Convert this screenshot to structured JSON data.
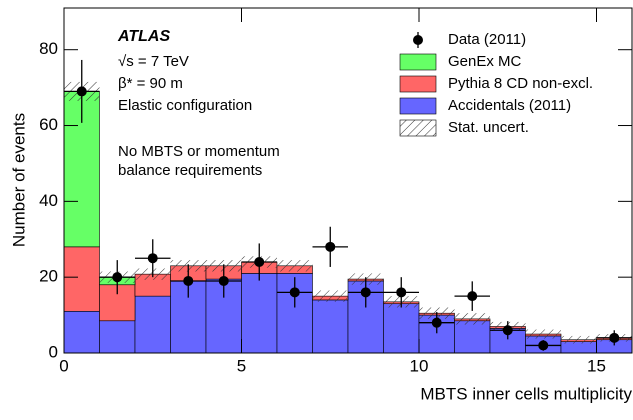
{
  "chart_data": {
    "type": "histogram",
    "x_label": "MBTS inner cells multiplicity",
    "y_label": "Number of events",
    "bins": [
      0,
      1,
      2,
      3,
      4,
      5,
      6,
      7,
      8,
      9,
      10,
      11,
      12,
      13,
      14,
      15,
      16
    ],
    "series": [
      {
        "name": "Accidentals (2011)",
        "color": "#6666ff",
        "values": [
          11,
          8.5,
          15,
          19,
          19.5,
          21,
          21,
          14,
          19,
          13,
          10,
          8.5,
          6.5,
          4.5,
          3,
          3.5
        ]
      },
      {
        "name": "Pythia 8 CD non-excl.",
        "color": "#ff6666",
        "values": [
          17,
          9.5,
          5.8,
          4,
          3.5,
          3,
          2,
          1,
          0.5,
          0.5,
          0.5,
          0.5,
          0.5,
          0.5,
          0.5,
          0.5
        ]
      },
      {
        "name": "GenEx MC",
        "color": "#66ff66",
        "values": [
          41,
          2,
          0,
          0,
          0,
          0,
          0,
          0,
          0,
          0,
          0,
          0,
          0,
          0,
          0,
          0
        ]
      }
    ],
    "stat_uncert": {
      "name": "Stat. uncert.",
      "values": [
        2.5,
        1.5,
        1.5,
        1.5,
        1.5,
        1.5,
        1.5,
        1.5,
        1.5,
        1.5,
        1.5,
        1.5,
        1.2,
        1.2,
        1,
        1
      ]
    },
    "data": {
      "name": "Data (2011)",
      "color": "#000000",
      "values": [
        69,
        20,
        25,
        19,
        19,
        24,
        16,
        28,
        16,
        16,
        8,
        15,
        6,
        2,
        null,
        4
      ],
      "errors": [
        8.3,
        4.5,
        5,
        4.4,
        4.4,
        4.9,
        4,
        5.3,
        4,
        4,
        2.8,
        3.9,
        2.4,
        1.4,
        null,
        2
      ]
    },
    "annotations": [
      "ATLAS",
      "√s = 7 TeV",
      "β* = 90 m",
      "Elastic configuration",
      "No MBTS or momentum",
      "balance requirements"
    ],
    "xlim": [
      0,
      16
    ],
    "ylim": [
      0,
      91
    ],
    "xticks": [
      0,
      5,
      10,
      15
    ],
    "yticks": [
      0,
      20,
      40,
      60,
      80
    ]
  }
}
